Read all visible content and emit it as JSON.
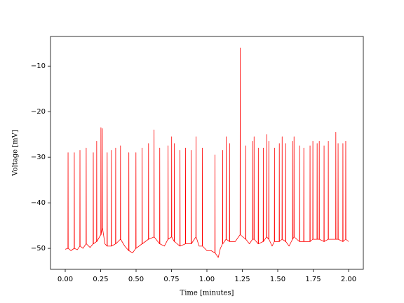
{
  "chart_data": {
    "type": "line",
    "xlabel": "Time [minutes]",
    "ylabel": "Voltage [mV]",
    "color": "#ff0000",
    "xlim": [
      -0.104,
      2.104
    ],
    "ylim": [
      -54.6,
      -3.5
    ],
    "xticks": [
      {
        "value": 0,
        "label": "0.00"
      },
      {
        "value": 0.25,
        "label": "0.25"
      },
      {
        "value": 0.5,
        "label": "0.50"
      },
      {
        "value": 0.75,
        "label": "0.75"
      },
      {
        "value": 1,
        "label": "1.00"
      },
      {
        "value": 1.25,
        "label": "1.25"
      },
      {
        "value": 1.5,
        "label": "1.50"
      },
      {
        "value": 1.75,
        "label": "1.75"
      },
      {
        "value": 2,
        "label": "2.00"
      }
    ],
    "yticks": [
      {
        "value": -50,
        "label": "−50"
      },
      {
        "value": -40,
        "label": "−40"
      },
      {
        "value": -30,
        "label": "−30"
      },
      {
        "value": -20,
        "label": "−20"
      },
      {
        "value": -10,
        "label": "−10"
      }
    ],
    "x": [
      0,
      0.019,
      0.02,
      0.021,
      0.04,
      0.063,
      0.064,
      0.065,
      0.085,
      0.103,
      0.104,
      0.105,
      0.125,
      0.147,
      0.148,
      0.149,
      0.175,
      0.197,
      0.198,
      0.199,
      0.221,
      0.222,
      0.223,
      0.251,
      0.252,
      0.253,
      0.261,
      0.262,
      0.263,
      0.28,
      0.295,
      0.296,
      0.297,
      0.325,
      0.326,
      0.327,
      0.355,
      0.356,
      0.357,
      0.389,
      0.39,
      0.391,
      0.42,
      0.448,
      0.449,
      0.45,
      0.475,
      0.498,
      0.499,
      0.5,
      0.542,
      0.543,
      0.544,
      0.587,
      0.588,
      0.589,
      0.626,
      0.627,
      0.628,
      0.666,
      0.667,
      0.668,
      0.7,
      0.725,
      0.726,
      0.727,
      0.75,
      0.751,
      0.752,
      0.769,
      0.77,
      0.771,
      0.809,
      0.81,
      0.811,
      0.848,
      0.849,
      0.85,
      0.888,
      0.889,
      0.89,
      0.922,
      0.923,
      0.924,
      0.945,
      0.967,
      0.968,
      0.969,
      1.0,
      1.03,
      1.056,
      1.057,
      1.058,
      1.08,
      1.095,
      1.11,
      1.111,
      1.112,
      1.135,
      1.136,
      1.137,
      1.159,
      1.16,
      1.161,
      1.2,
      1.234,
      1.235,
      1.236,
      1.273,
      1.274,
      1.275,
      1.3,
      1.322,
      1.323,
      1.324,
      1.332,
      1.333,
      1.334,
      1.362,
      1.363,
      1.364,
      1.397,
      1.398,
      1.399,
      1.421,
      1.422,
      1.423,
      1.436,
      1.437,
      1.438,
      1.46,
      1.476,
      1.477,
      1.478,
      1.51,
      1.511,
      1.512,
      1.53,
      1.531,
      1.532,
      1.555,
      1.556,
      1.557,
      1.58,
      1.604,
      1.605,
      1.606,
      1.614,
      1.615,
      1.616,
      1.653,
      1.654,
      1.655,
      1.683,
      1.684,
      1.685,
      1.727,
      1.728,
      1.729,
      1.747,
      1.748,
      1.749,
      1.777,
      1.778,
      1.779,
      1.792,
      1.793,
      1.794,
      1.826,
      1.827,
      1.828,
      1.856,
      1.857,
      1.858,
      1.909,
      1.91,
      1.911,
      1.925,
      1.926,
      1.927,
      1.959,
      1.96,
      1.961,
      1.979,
      1.98,
      1.981,
      2.0
    ],
    "values": [
      -50.2,
      -50,
      -29,
      -50,
      -50.5,
      -50,
      -29,
      -50,
      -50.3,
      -49.5,
      -28.5,
      -49.5,
      -50,
      -49,
      -28,
      -49,
      -49.8,
      -49,
      -29,
      -49,
      -48.5,
      -26.5,
      -48.5,
      -47,
      -23.5,
      -47,
      -45.5,
      -23.7,
      -45.5,
      -49,
      -49.5,
      -29,
      -49.5,
      -49.5,
      -28.5,
      -49.5,
      -49,
      -28,
      -49,
      -48,
      -27.5,
      -48,
      -49.5,
      -50.5,
      -29,
      -50.5,
      -51,
      -50,
      -29,
      -50,
      -49,
      -28,
      -49,
      -48,
      -27,
      -48,
      -47.5,
      -24,
      -47.5,
      -49,
      -28,
      -49,
      -49.5,
      -48,
      -27.5,
      -48,
      -47.5,
      -25.5,
      -47.5,
      -48.5,
      -27,
      -48.5,
      -49.5,
      -28.5,
      -49.5,
      -49,
      -28,
      -49,
      -49,
      -28.5,
      -49,
      -47.5,
      -25.5,
      -47.5,
      -49.5,
      -49.5,
      -28,
      -49.5,
      -50.5,
      -50.5,
      -51,
      -29.5,
      -51,
      -52,
      -50,
      -49,
      -28.5,
      -49,
      -48,
      -25.5,
      -48,
      -48.5,
      -27,
      -48.5,
      -48.5,
      -47,
      -6,
      -47,
      -48,
      -27.5,
      -48,
      -49,
      -48,
      -26.5,
      -48,
      -48,
      -25.5,
      -48,
      -49,
      -28,
      -49,
      -48.5,
      -28,
      -48.5,
      -47.5,
      -25,
      -47.5,
      -48,
      -26.5,
      -48,
      -49.5,
      -48.5,
      -28,
      -48.5,
      -48.5,
      -27,
      -48.5,
      -48,
      -25.5,
      -48,
      -48.5,
      -27,
      -48.5,
      -49.5,
      -48,
      -26.5,
      -48,
      -47.5,
      -25.5,
      -47.5,
      -48.5,
      -27.5,
      -48.5,
      -48.5,
      -28,
      -48.5,
      -48.5,
      -27.5,
      -48.5,
      -48,
      -26.5,
      -48,
      -48,
      -27,
      -48,
      -48,
      -26.5,
      -48,
      -48.5,
      -27.5,
      -48.5,
      -48,
      -26.5,
      -48,
      -48,
      -24.5,
      -48,
      -48,
      -27,
      -48,
      -48.5,
      -27,
      -48.5,
      -48,
      -26.5,
      -48,
      -48.5
    ]
  }
}
